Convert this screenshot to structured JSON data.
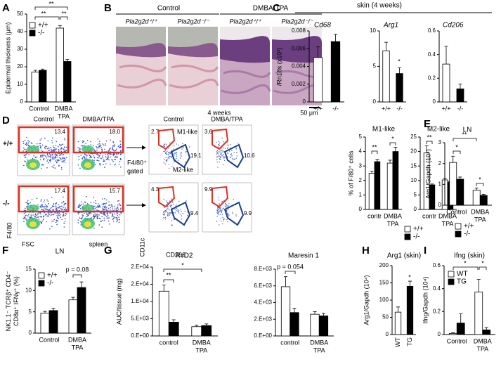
{
  "images": {
    "histology": {
      "label": "B",
      "groups": [
        "Control",
        "DMBA/TPA"
      ],
      "genotypes": [
        "Pla2g2d⁺/⁺",
        "Pla2g2d⁻/⁻",
        "Pla2g2d⁺/⁺",
        "Pla2g2d⁻/⁻"
      ],
      "caption": "4 weeks",
      "scale": "50 μm"
    },
    "flow": {
      "label": "D",
      "columns": [
        "Control",
        "DMBA/TPA"
      ],
      "rows": [
        "+/+",
        "-/-"
      ],
      "gate_percent": [
        "13.4",
        "18.0",
        "17.4",
        "15.7"
      ],
      "xlabel": "FSC",
      "ylabel": "F4/80",
      "tissue": "spleen",
      "gated_label": [
        "F4/80⁺",
        "gated"
      ],
      "sub_columns": [
        "Control",
        "DMBA/TPA"
      ],
      "m1": "M1-like",
      "m2": "M2-like",
      "m1_percent": [
        "2.7",
        "3.6",
        "4.3",
        "9.9"
      ],
      "m2_percent": [
        "19.1",
        "10.6",
        "9.4",
        "9.9"
      ],
      "sub_xlabel": "CD206",
      "sub_ylabel": "CD11c"
    }
  },
  "chart_data": [
    {
      "type": "bar",
      "label": "A",
      "ylabel": "Epidermal thickness (μm)",
      "categories": [
        "Control",
        [
          "DMBA",
          "TPA"
        ]
      ],
      "series": [
        {
          "name": "+/+",
          "color": "#ffffff",
          "values": [
            17,
            42
          ],
          "errors": [
            1,
            1.5
          ]
        },
        {
          "name": "-/-",
          "color": "#000000",
          "values": [
            18,
            23
          ],
          "errors": [
            0.7,
            1.2
          ]
        }
      ],
      "ylim": [
        0,
        50
      ],
      "yticks": [
        0,
        10,
        20,
        30,
        40,
        50
      ],
      "annotations": [
        "**",
        "**",
        "**"
      ]
    },
    {
      "type": "bar",
      "label": "C",
      "header": "skin (4 weeks)",
      "ylabel": "/Rn18s (x10³)",
      "title": "Cd68",
      "categories": [
        "+/+",
        "-/-"
      ],
      "series": [
        {
          "colors": [
            "#ffffff",
            "#000000"
          ],
          "values": [
            0.005,
            0.0068
          ],
          "errors": [
            0.0012,
            0.0008
          ]
        }
      ],
      "ylim": [
        0,
        0.008
      ],
      "yticks": [
        0,
        0.002,
        0.004,
        0.006,
        0.008
      ]
    },
    {
      "type": "bar",
      "title": "Arg1",
      "categories": [
        "+/+",
        "-/-"
      ],
      "series": [
        {
          "colors": [
            "#ffffff",
            "#000000"
          ],
          "values": [
            7.2,
            4.0
          ],
          "errors": [
            1.2,
            0.8
          ]
        }
      ],
      "ylim": [
        0,
        10
      ],
      "yticks": [
        0,
        5,
        10
      ],
      "annotations": [
        "*"
      ]
    },
    {
      "type": "bar",
      "title": "Cd206",
      "categories": [
        "+/+",
        "-/-"
      ],
      "series": [
        {
          "colors": [
            "#ffffff",
            "#000000"
          ],
          "values": [
            0.32,
            0.11
          ],
          "errors": [
            0.15,
            0.04
          ]
        }
      ],
      "ylim": [
        0,
        0.6
      ],
      "yticks": [
        0,
        0.2,
        0.4,
        0.6
      ]
    },
    {
      "type": "bar",
      "title": "M1-like",
      "ylabel": "% of F/80⁺ cells",
      "categories": [
        "contr",
        [
          "DMBA",
          "TPA"
        ]
      ],
      "series": [
        {
          "name": "+/+",
          "color": "#ffffff",
          "values": [
            2.5,
            3.2
          ],
          "errors": [
            0.15,
            0.2
          ]
        },
        {
          "name": "-/-",
          "color": "#000000",
          "values": [
            3.3,
            4.0
          ],
          "errors": [
            0.15,
            0.3
          ]
        }
      ],
      "ylim": [
        0,
        5
      ],
      "yticks": [
        0,
        1,
        2,
        3,
        4,
        5
      ],
      "annotations": [
        "**",
        "*"
      ]
    },
    {
      "type": "bar",
      "title": "M2-like",
      "categories": [
        "contr",
        [
          "DMBA",
          "TPA"
        ]
      ],
      "series": [
        {
          "color": "#ffffff",
          "values": [
            19.5,
            10.2
          ],
          "errors": [
            2.5,
            0.5
          ]
        },
        {
          "color": "#000000",
          "values": [
            8.5,
            9.5
          ],
          "errors": [
            0.3,
            0.3
          ]
        }
      ],
      "ylim": [
        0,
        25
      ],
      "yticks": [
        0,
        5,
        10,
        15,
        20,
        25
      ],
      "annotations": [
        "**"
      ]
    },
    {
      "type": "bar",
      "label": "E",
      "title": "LN",
      "ylabel": "Arg1/Gapdh (10⁴)",
      "categories": [
        "Control",
        [
          "DMBA",
          "TPA"
        ]
      ],
      "series": [
        {
          "name": "+/+",
          "color": "#ffffff",
          "values": [
            2.05,
            0.72
          ],
          "errors": [
            0.3,
            0.1
          ]
        },
        {
          "name": "-/-",
          "color": "#000000",
          "values": [
            1.25,
            0.47
          ],
          "errors": [
            0.1,
            0.05
          ]
        }
      ],
      "ylim": [
        0,
        3
      ],
      "yticks": [
        0,
        1,
        2,
        3
      ],
      "annotations": [
        "*",
        "**",
        "*"
      ]
    },
    {
      "type": "bar",
      "label": "F",
      "title": "LN",
      "ylabel": [
        "NK1.1⁻ TCRβ⁺ CD4⁻",
        "CD8α⁺ IFNγ⁺ (%)"
      ],
      "categories": [
        "Control",
        [
          "DMBA",
          "TPA"
        ]
      ],
      "series": [
        {
          "name": "+/+",
          "color": "#ffffff",
          "values": [
            4.7,
            7.8
          ],
          "errors": [
            0.4,
            0.6
          ]
        },
        {
          "name": "-/-",
          "color": "#000000",
          "values": [
            5.3,
            10.7
          ],
          "errors": [
            0.5,
            1.3
          ]
        }
      ],
      "ylim": [
        0,
        15
      ],
      "yticks": [
        0,
        5,
        10,
        15
      ],
      "annotations": [
        "p = 0.08"
      ]
    },
    {
      "type": "bar",
      "label": "G",
      "title": "RvD2",
      "ylabel": "AUC/tissue (mg)",
      "categories": [
        "control",
        [
          "DMBA",
          "TPA"
        ]
      ],
      "series": [
        {
          "color": "#ffffff",
          "values": [
            13000,
            2700
          ],
          "errors": [
            1800,
            400
          ]
        },
        {
          "color": "#000000",
          "values": [
            4000,
            3000
          ],
          "errors": [
            700,
            500
          ]
        }
      ],
      "ylim": [
        0,
        20000
      ],
      "yticks": [
        {
          "value": 0,
          "label": "0.E+00"
        },
        {
          "value": 5000,
          "label": "5.E+03"
        },
        {
          "value": 10000,
          "label": "1.E+04"
        },
        {
          "value": 15000,
          "label": "2.E+04"
        },
        {
          "value": 20000,
          "label": "2.E+04"
        }
      ],
      "annotations": [
        "**",
        "*"
      ]
    },
    {
      "type": "bar",
      "title": "Maresin 1",
      "categories": [
        "control",
        [
          "DMBA",
          "TPA"
        ]
      ],
      "series": [
        {
          "color": "#ffffff",
          "values": [
            5900,
            2600
          ],
          "errors": [
            1200,
            300
          ]
        },
        {
          "color": "#000000",
          "values": [
            2800,
            2400
          ],
          "errors": [
            500,
            300
          ]
        }
      ],
      "ylim": [
        0,
        8000
      ],
      "yticks": [
        {
          "value": 0,
          "label": "0.E+00"
        },
        {
          "value": 2000,
          "label": "2.E+03"
        },
        {
          "value": 4000,
          "label": "4.E+03"
        },
        {
          "value": 6000,
          "label": "6.E+03"
        },
        {
          "value": 8000,
          "label": "8.E+03"
        }
      ],
      "annotations": [
        "p = 0.054"
      ]
    },
    {
      "type": "bar",
      "label": "H",
      "title": "Arg1 (skin)",
      "ylabel": "Arg1/Gapdh (10⁴)",
      "categories": [
        "WT",
        "TG"
      ],
      "series": [
        {
          "colors": [
            "#ffffff",
            "#000000"
          ],
          "values": [
            65,
            140
          ],
          "errors": [
            15,
            15
          ]
        }
      ],
      "ylim": [
        0,
        200
      ],
      "yticks": [
        0,
        50,
        100,
        150,
        200
      ],
      "annotations": [
        "*"
      ]
    },
    {
      "type": "bar",
      "label": "I",
      "title": "Ifng (skin)",
      "ylabel": "Ifng/Gapdh (10⁴)",
      "categories": [
        "Control",
        [
          "DMBA",
          "TPA"
        ]
      ],
      "series": [
        {
          "name": "WT",
          "color": "#ffffff",
          "values": [
            0.01,
            0.37
          ],
          "errors": [
            0.005,
            0.11
          ]
        },
        {
          "name": "TG",
          "color": "#000000",
          "values": [
            0.1,
            0.04
          ],
          "errors": [
            0.08,
            0.02
          ]
        }
      ],
      "ylim": [
        0,
        0.6
      ],
      "yticks": [
        0,
        0.2,
        0.4,
        0.6
      ],
      "annotations": [
        "*",
        "*"
      ]
    }
  ]
}
